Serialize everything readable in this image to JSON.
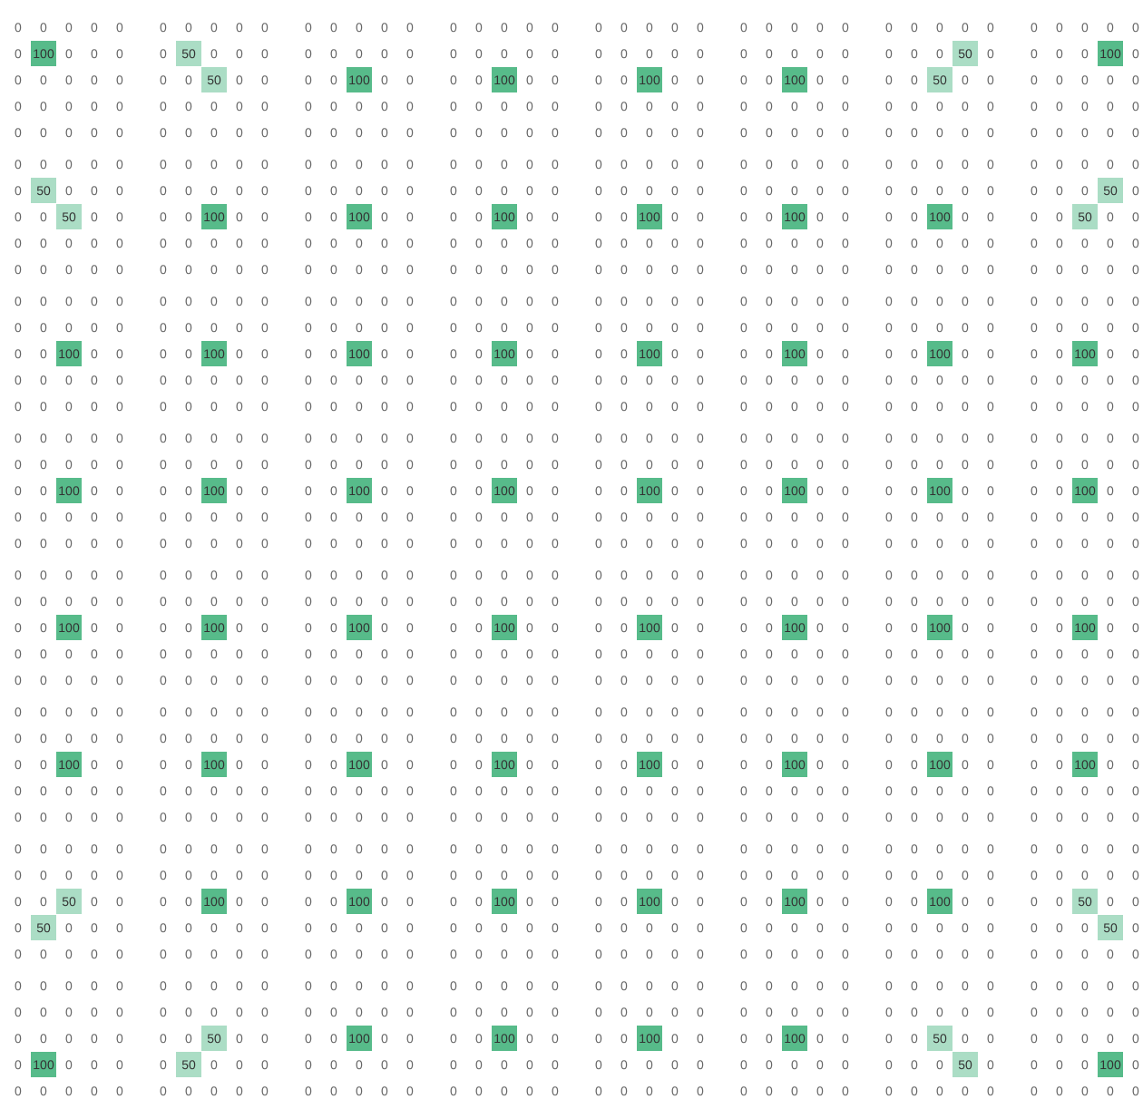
{
  "chart_data": {
    "type": "heatmap",
    "data_labels": true,
    "categories": [
      null,
      null,
      null,
      null,
      null,
      null,
      null,
      null,
      null,
      null,
      null,
      null,
      null,
      null,
      null,
      null,
      null,
      null,
      null,
      null,
      null,
      null,
      null,
      null,
      null,
      null,
      null,
      null,
      null,
      null,
      null,
      null,
      null,
      null,
      null,
      null,
      null,
      null,
      null,
      null
    ],
    "y_categories": [
      null,
      null,
      null,
      null,
      null,
      null,
      null,
      null,
      null,
      null,
      null,
      null,
      null,
      null,
      null,
      null,
      null,
      null,
      null,
      null,
      null,
      null,
      null,
      null,
      null,
      null,
      null,
      null,
      null,
      null,
      null,
      null,
      null,
      null,
      null,
      null,
      null,
      null,
      null,
      null
    ],
    "cells": [
      [
        0,
        0,
        0,
        0,
        0,
        0,
        0,
        0,
        0,
        0,
        0,
        0,
        0,
        0,
        0,
        0,
        0,
        0,
        0,
        0,
        0,
        0,
        0,
        0,
        0,
        0,
        0,
        0,
        0,
        0,
        0,
        0,
        0,
        0,
        0,
        0,
        0,
        0,
        0,
        0
      ],
      [
        0,
        100,
        0,
        0,
        0,
        0,
        50,
        0,
        0,
        0,
        0,
        0,
        0,
        0,
        0,
        0,
        0,
        0,
        0,
        0,
        0,
        0,
        0,
        0,
        0,
        0,
        0,
        0,
        0,
        0,
        0,
        0,
        0,
        50,
        0,
        0,
        0,
        0,
        100,
        0
      ],
      [
        0,
        0,
        0,
        0,
        0,
        0,
        0,
        50,
        0,
        0,
        0,
        0,
        100,
        0,
        0,
        0,
        0,
        100,
        0,
        0,
        0,
        0,
        100,
        0,
        0,
        0,
        0,
        100,
        0,
        0,
        0,
        0,
        50,
        0,
        0,
        0,
        0,
        0,
        0,
        0
      ],
      [
        0,
        0,
        0,
        0,
        0,
        0,
        0,
        0,
        0,
        0,
        0,
        0,
        0,
        0,
        0,
        0,
        0,
        0,
        0,
        0,
        0,
        0,
        0,
        0,
        0,
        0,
        0,
        0,
        0,
        0,
        0,
        0,
        0,
        0,
        0,
        0,
        0,
        0,
        0,
        0
      ],
      [
        0,
        0,
        0,
        0,
        0,
        0,
        0,
        0,
        0,
        0,
        0,
        0,
        0,
        0,
        0,
        0,
        0,
        0,
        0,
        0,
        0,
        0,
        0,
        0,
        0,
        0,
        0,
        0,
        0,
        0,
        0,
        0,
        0,
        0,
        0,
        0,
        0,
        0,
        0,
        0
      ],
      [
        0,
        0,
        0,
        0,
        0,
        0,
        0,
        0,
        0,
        0,
        0,
        0,
        0,
        0,
        0,
        0,
        0,
        0,
        0,
        0,
        0,
        0,
        0,
        0,
        0,
        0,
        0,
        0,
        0,
        0,
        0,
        0,
        0,
        0,
        0,
        0,
        0,
        0,
        0,
        0
      ],
      [
        0,
        50,
        0,
        0,
        0,
        0,
        0,
        0,
        0,
        0,
        0,
        0,
        0,
        0,
        0,
        0,
        0,
        0,
        0,
        0,
        0,
        0,
        0,
        0,
        0,
        0,
        0,
        0,
        0,
        0,
        0,
        0,
        0,
        0,
        0,
        0,
        0,
        0,
        50,
        0
      ],
      [
        0,
        0,
        50,
        0,
        0,
        0,
        0,
        100,
        0,
        0,
        0,
        0,
        100,
        0,
        0,
        0,
        0,
        100,
        0,
        0,
        0,
        0,
        100,
        0,
        0,
        0,
        0,
        100,
        0,
        0,
        0,
        0,
        100,
        0,
        0,
        0,
        0,
        50,
        0,
        0
      ],
      [
        0,
        0,
        0,
        0,
        0,
        0,
        0,
        0,
        0,
        0,
        0,
        0,
        0,
        0,
        0,
        0,
        0,
        0,
        0,
        0,
        0,
        0,
        0,
        0,
        0,
        0,
        0,
        0,
        0,
        0,
        0,
        0,
        0,
        0,
        0,
        0,
        0,
        0,
        0,
        0
      ],
      [
        0,
        0,
        0,
        0,
        0,
        0,
        0,
        0,
        0,
        0,
        0,
        0,
        0,
        0,
        0,
        0,
        0,
        0,
        0,
        0,
        0,
        0,
        0,
        0,
        0,
        0,
        0,
        0,
        0,
        0,
        0,
        0,
        0,
        0,
        0,
        0,
        0,
        0,
        0,
        0
      ],
      [
        0,
        0,
        0,
        0,
        0,
        0,
        0,
        0,
        0,
        0,
        0,
        0,
        0,
        0,
        0,
        0,
        0,
        0,
        0,
        0,
        0,
        0,
        0,
        0,
        0,
        0,
        0,
        0,
        0,
        0,
        0,
        0,
        0,
        0,
        0,
        0,
        0,
        0,
        0,
        0
      ],
      [
        0,
        0,
        0,
        0,
        0,
        0,
        0,
        0,
        0,
        0,
        0,
        0,
        0,
        0,
        0,
        0,
        0,
        0,
        0,
        0,
        0,
        0,
        0,
        0,
        0,
        0,
        0,
        0,
        0,
        0,
        0,
        0,
        0,
        0,
        0,
        0,
        0,
        0,
        0,
        0
      ],
      [
        0,
        0,
        100,
        0,
        0,
        0,
        0,
        100,
        0,
        0,
        0,
        0,
        100,
        0,
        0,
        0,
        0,
        100,
        0,
        0,
        0,
        0,
        100,
        0,
        0,
        0,
        0,
        100,
        0,
        0,
        0,
        0,
        100,
        0,
        0,
        0,
        0,
        100,
        0,
        0
      ],
      [
        0,
        0,
        0,
        0,
        0,
        0,
        0,
        0,
        0,
        0,
        0,
        0,
        0,
        0,
        0,
        0,
        0,
        0,
        0,
        0,
        0,
        0,
        0,
        0,
        0,
        0,
        0,
        0,
        0,
        0,
        0,
        0,
        0,
        0,
        0,
        0,
        0,
        0,
        0,
        0
      ],
      [
        0,
        0,
        0,
        0,
        0,
        0,
        0,
        0,
        0,
        0,
        0,
        0,
        0,
        0,
        0,
        0,
        0,
        0,
        0,
        0,
        0,
        0,
        0,
        0,
        0,
        0,
        0,
        0,
        0,
        0,
        0,
        0,
        0,
        0,
        0,
        0,
        0,
        0,
        0,
        0
      ],
      [
        0,
        0,
        0,
        0,
        0,
        0,
        0,
        0,
        0,
        0,
        0,
        0,
        0,
        0,
        0,
        0,
        0,
        0,
        0,
        0,
        0,
        0,
        0,
        0,
        0,
        0,
        0,
        0,
        0,
        0,
        0,
        0,
        0,
        0,
        0,
        0,
        0,
        0,
        0,
        0
      ],
      [
        0,
        0,
        0,
        0,
        0,
        0,
        0,
        0,
        0,
        0,
        0,
        0,
        0,
        0,
        0,
        0,
        0,
        0,
        0,
        0,
        0,
        0,
        0,
        0,
        0,
        0,
        0,
        0,
        0,
        0,
        0,
        0,
        0,
        0,
        0,
        0,
        0,
        0,
        0,
        0
      ],
      [
        0,
        0,
        100,
        0,
        0,
        0,
        0,
        100,
        0,
        0,
        0,
        0,
        100,
        0,
        0,
        0,
        0,
        100,
        0,
        0,
        0,
        0,
        100,
        0,
        0,
        0,
        0,
        100,
        0,
        0,
        0,
        0,
        100,
        0,
        0,
        0,
        0,
        100,
        0,
        0
      ],
      [
        0,
        0,
        0,
        0,
        0,
        0,
        0,
        0,
        0,
        0,
        0,
        0,
        0,
        0,
        0,
        0,
        0,
        0,
        0,
        0,
        0,
        0,
        0,
        0,
        0,
        0,
        0,
        0,
        0,
        0,
        0,
        0,
        0,
        0,
        0,
        0,
        0,
        0,
        0,
        0
      ],
      [
        0,
        0,
        0,
        0,
        0,
        0,
        0,
        0,
        0,
        0,
        0,
        0,
        0,
        0,
        0,
        0,
        0,
        0,
        0,
        0,
        0,
        0,
        0,
        0,
        0,
        0,
        0,
        0,
        0,
        0,
        0,
        0,
        0,
        0,
        0,
        0,
        0,
        0,
        0,
        0
      ],
      [
        0,
        0,
        0,
        0,
        0,
        0,
        0,
        0,
        0,
        0,
        0,
        0,
        0,
        0,
        0,
        0,
        0,
        0,
        0,
        0,
        0,
        0,
        0,
        0,
        0,
        0,
        0,
        0,
        0,
        0,
        0,
        0,
        0,
        0,
        0,
        0,
        0,
        0,
        0,
        0
      ],
      [
        0,
        0,
        0,
        0,
        0,
        0,
        0,
        0,
        0,
        0,
        0,
        0,
        0,
        0,
        0,
        0,
        0,
        0,
        0,
        0,
        0,
        0,
        0,
        0,
        0,
        0,
        0,
        0,
        0,
        0,
        0,
        0,
        0,
        0,
        0,
        0,
        0,
        0,
        0,
        0
      ],
      [
        0,
        0,
        100,
        0,
        0,
        0,
        0,
        100,
        0,
        0,
        0,
        0,
        100,
        0,
        0,
        0,
        0,
        100,
        0,
        0,
        0,
        0,
        100,
        0,
        0,
        0,
        0,
        100,
        0,
        0,
        0,
        0,
        100,
        0,
        0,
        0,
        0,
        100,
        0,
        0
      ],
      [
        0,
        0,
        0,
        0,
        0,
        0,
        0,
        0,
        0,
        0,
        0,
        0,
        0,
        0,
        0,
        0,
        0,
        0,
        0,
        0,
        0,
        0,
        0,
        0,
        0,
        0,
        0,
        0,
        0,
        0,
        0,
        0,
        0,
        0,
        0,
        0,
        0,
        0,
        0,
        0
      ],
      [
        0,
        0,
        0,
        0,
        0,
        0,
        0,
        0,
        0,
        0,
        0,
        0,
        0,
        0,
        0,
        0,
        0,
        0,
        0,
        0,
        0,
        0,
        0,
        0,
        0,
        0,
        0,
        0,
        0,
        0,
        0,
        0,
        0,
        0,
        0,
        0,
        0,
        0,
        0,
        0
      ],
      [
        0,
        0,
        0,
        0,
        0,
        0,
        0,
        0,
        0,
        0,
        0,
        0,
        0,
        0,
        0,
        0,
        0,
        0,
        0,
        0,
        0,
        0,
        0,
        0,
        0,
        0,
        0,
        0,
        0,
        0,
        0,
        0,
        0,
        0,
        0,
        0,
        0,
        0,
        0,
        0
      ],
      [
        0,
        0,
        0,
        0,
        0,
        0,
        0,
        0,
        0,
        0,
        0,
        0,
        0,
        0,
        0,
        0,
        0,
        0,
        0,
        0,
        0,
        0,
        0,
        0,
        0,
        0,
        0,
        0,
        0,
        0,
        0,
        0,
        0,
        0,
        0,
        0,
        0,
        0,
        0,
        0
      ],
      [
        0,
        0,
        100,
        0,
        0,
        0,
        0,
        100,
        0,
        0,
        0,
        0,
        100,
        0,
        0,
        0,
        0,
        100,
        0,
        0,
        0,
        0,
        100,
        0,
        0,
        0,
        0,
        100,
        0,
        0,
        0,
        0,
        100,
        0,
        0,
        0,
        0,
        100,
        0,
        0
      ],
      [
        0,
        0,
        0,
        0,
        0,
        0,
        0,
        0,
        0,
        0,
        0,
        0,
        0,
        0,
        0,
        0,
        0,
        0,
        0,
        0,
        0,
        0,
        0,
        0,
        0,
        0,
        0,
        0,
        0,
        0,
        0,
        0,
        0,
        0,
        0,
        0,
        0,
        0,
        0,
        0
      ],
      [
        0,
        0,
        0,
        0,
        0,
        0,
        0,
        0,
        0,
        0,
        0,
        0,
        0,
        0,
        0,
        0,
        0,
        0,
        0,
        0,
        0,
        0,
        0,
        0,
        0,
        0,
        0,
        0,
        0,
        0,
        0,
        0,
        0,
        0,
        0,
        0,
        0,
        0,
        0,
        0
      ],
      [
        0,
        0,
        0,
        0,
        0,
        0,
        0,
        0,
        0,
        0,
        0,
        0,
        0,
        0,
        0,
        0,
        0,
        0,
        0,
        0,
        0,
        0,
        0,
        0,
        0,
        0,
        0,
        0,
        0,
        0,
        0,
        0,
        0,
        0,
        0,
        0,
        0,
        0,
        0,
        0
      ],
      [
        0,
        0,
        0,
        0,
        0,
        0,
        0,
        0,
        0,
        0,
        0,
        0,
        0,
        0,
        0,
        0,
        0,
        0,
        0,
        0,
        0,
        0,
        0,
        0,
        0,
        0,
        0,
        0,
        0,
        0,
        0,
        0,
        0,
        0,
        0,
        0,
        0,
        0,
        0,
        0
      ],
      [
        0,
        0,
        50,
        0,
        0,
        0,
        0,
        100,
        0,
        0,
        0,
        0,
        100,
        0,
        0,
        0,
        0,
        100,
        0,
        0,
        0,
        0,
        100,
        0,
        0,
        0,
        0,
        100,
        0,
        0,
        0,
        0,
        100,
        0,
        0,
        0,
        0,
        50,
        0,
        0
      ],
      [
        0,
        50,
        0,
        0,
        0,
        0,
        0,
        0,
        0,
        0,
        0,
        0,
        0,
        0,
        0,
        0,
        0,
        0,
        0,
        0,
        0,
        0,
        0,
        0,
        0,
        0,
        0,
        0,
        0,
        0,
        0,
        0,
        0,
        0,
        0,
        0,
        0,
        0,
        50,
        0
      ],
      [
        0,
        0,
        0,
        0,
        0,
        0,
        0,
        0,
        0,
        0,
        0,
        0,
        0,
        0,
        0,
        0,
        0,
        0,
        0,
        0,
        0,
        0,
        0,
        0,
        0,
        0,
        0,
        0,
        0,
        0,
        0,
        0,
        0,
        0,
        0,
        0,
        0,
        0,
        0,
        0
      ],
      [
        0,
        0,
        0,
        0,
        0,
        0,
        0,
        0,
        0,
        0,
        0,
        0,
        0,
        0,
        0,
        0,
        0,
        0,
        0,
        0,
        0,
        0,
        0,
        0,
        0,
        0,
        0,
        0,
        0,
        0,
        0,
        0,
        0,
        0,
        0,
        0,
        0,
        0,
        0,
        0
      ],
      [
        0,
        0,
        0,
        0,
        0,
        0,
        0,
        0,
        0,
        0,
        0,
        0,
        0,
        0,
        0,
        0,
        0,
        0,
        0,
        0,
        0,
        0,
        0,
        0,
        0,
        0,
        0,
        0,
        0,
        0,
        0,
        0,
        0,
        0,
        0,
        0,
        0,
        0,
        0,
        0
      ],
      [
        0,
        0,
        0,
        0,
        0,
        0,
        0,
        50,
        0,
        0,
        0,
        0,
        100,
        0,
        0,
        0,
        0,
        100,
        0,
        0,
        0,
        0,
        100,
        0,
        0,
        0,
        0,
        100,
        0,
        0,
        0,
        0,
        50,
        0,
        0,
        0,
        0,
        0,
        0,
        0
      ],
      [
        0,
        100,
        0,
        0,
        0,
        0,
        50,
        0,
        0,
        0,
        0,
        0,
        0,
        0,
        0,
        0,
        0,
        0,
        0,
        0,
        0,
        0,
        0,
        0,
        0,
        0,
        0,
        0,
        0,
        0,
        0,
        0,
        0,
        50,
        0,
        0,
        0,
        0,
        100,
        0
      ],
      [
        0,
        0,
        0,
        0,
        0,
        0,
        0,
        0,
        0,
        0,
        0,
        0,
        0,
        0,
        0,
        0,
        0,
        0,
        0,
        0,
        0,
        0,
        0,
        0,
        0,
        0,
        0,
        0,
        0,
        0,
        0,
        0,
        0,
        0,
        0,
        0,
        0,
        0,
        0,
        0
      ]
    ]
  }
}
